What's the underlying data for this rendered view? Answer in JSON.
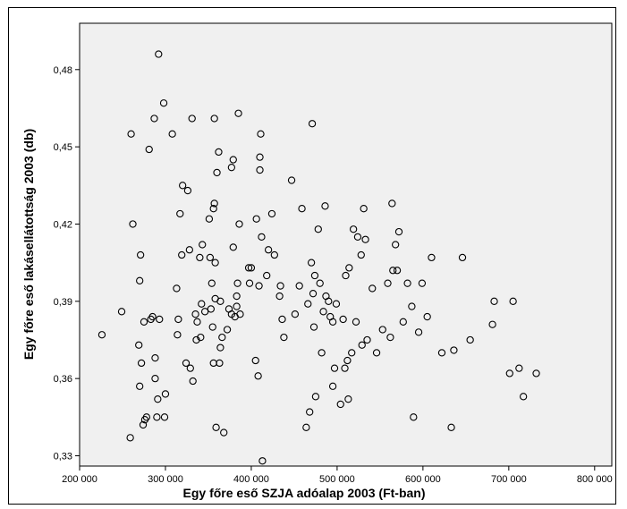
{
  "chart_data": {
    "type": "scatter",
    "title": "",
    "xlabel": "Egy főre eső SZJA adóalap 2003 (Ft-ban)",
    "ylabel": "Egy főre eső lakásellátottság 2003 (db)",
    "xlim": [
      200000,
      820000
    ],
    "ylim": [
      0.326,
      0.498
    ],
    "xticks": [
      200000,
      300000,
      400000,
      500000,
      600000,
      700000,
      800000
    ],
    "xtick_labels": [
      "200 000",
      "300 000",
      "400 000",
      "500 000",
      "600 000",
      "700 000",
      "800 000"
    ],
    "yticks": [
      0.33,
      0.36,
      0.39,
      0.42,
      0.45,
      0.48
    ],
    "ytick_labels": [
      "0,33",
      "0,36",
      "0,39",
      "0,42",
      "0,45",
      "0,48"
    ],
    "grid": false,
    "legend": "none",
    "marker": "open-circle",
    "colors": {
      "plot_background": "#f0f0f0",
      "marker": "#000000",
      "axes": "#000000"
    },
    "points": [
      [
        226000,
        0.377
      ],
      [
        249000,
        0.386
      ],
      [
        259000,
        0.337
      ],
      [
        260000,
        0.455
      ],
      [
        262000,
        0.42
      ],
      [
        269000,
        0.373
      ],
      [
        270000,
        0.398
      ],
      [
        270000,
        0.357
      ],
      [
        271000,
        0.408
      ],
      [
        272000,
        0.366
      ],
      [
        274000,
        0.342
      ],
      [
        275000,
        0.382
      ],
      [
        276000,
        0.344
      ],
      [
        278000,
        0.345
      ],
      [
        281000,
        0.449
      ],
      [
        283000,
        0.383
      ],
      [
        285000,
        0.384
      ],
      [
        287000,
        0.461
      ],
      [
        288000,
        0.368
      ],
      [
        288000,
        0.36
      ],
      [
        290000,
        0.345
      ],
      [
        291000,
        0.352
      ],
      [
        292000,
        0.486
      ],
      [
        293000,
        0.383
      ],
      [
        298000,
        0.467
      ],
      [
        299000,
        0.345
      ],
      [
        300000,
        0.354
      ],
      [
        308000,
        0.455
      ],
      [
        313000,
        0.395
      ],
      [
        314000,
        0.377
      ],
      [
        315000,
        0.383
      ],
      [
        317000,
        0.424
      ],
      [
        319000,
        0.408
      ],
      [
        320000,
        0.435
      ],
      [
        324000,
        0.366
      ],
      [
        326000,
        0.433
      ],
      [
        328000,
        0.41
      ],
      [
        329000,
        0.364
      ],
      [
        331000,
        0.461
      ],
      [
        332000,
        0.359
      ],
      [
        335000,
        0.385
      ],
      [
        336000,
        0.375
      ],
      [
        337000,
        0.382
      ],
      [
        340000,
        0.407
      ],
      [
        341000,
        0.376
      ],
      [
        342000,
        0.389
      ],
      [
        343000,
        0.412
      ],
      [
        346000,
        0.386
      ],
      [
        351000,
        0.422
      ],
      [
        352000,
        0.407
      ],
      [
        353000,
        0.387
      ],
      [
        354000,
        0.397
      ],
      [
        355000,
        0.38
      ],
      [
        356000,
        0.366
      ],
      [
        356000,
        0.426
      ],
      [
        357000,
        0.461
      ],
      [
        357000,
        0.428
      ],
      [
        358000,
        0.391
      ],
      [
        358000,
        0.405
      ],
      [
        359000,
        0.341
      ],
      [
        360000,
        0.44
      ],
      [
        362000,
        0.448
      ],
      [
        363000,
        0.366
      ],
      [
        364000,
        0.372
      ],
      [
        364000,
        0.39
      ],
      [
        366000,
        0.376
      ],
      [
        368000,
        0.339
      ],
      [
        372000,
        0.379
      ],
      [
        374000,
        0.387
      ],
      [
        377000,
        0.385
      ],
      [
        377000,
        0.442
      ],
      [
        379000,
        0.411
      ],
      [
        379000,
        0.445
      ],
      [
        381000,
        0.384
      ],
      [
        383000,
        0.392
      ],
      [
        383000,
        0.388
      ],
      [
        384000,
        0.397
      ],
      [
        385000,
        0.463
      ],
      [
        386000,
        0.42
      ],
      [
        387000,
        0.385
      ],
      [
        397000,
        0.403
      ],
      [
        398000,
        0.397
      ],
      [
        400000,
        0.403
      ],
      [
        405000,
        0.367
      ],
      [
        406000,
        0.422
      ],
      [
        408000,
        0.361
      ],
      [
        409000,
        0.396
      ],
      [
        410000,
        0.446
      ],
      [
        410000,
        0.441
      ],
      [
        411000,
        0.455
      ],
      [
        412000,
        0.415
      ],
      [
        413000,
        0.328
      ],
      [
        418000,
        0.4
      ],
      [
        420000,
        0.41
      ],
      [
        424000,
        0.424
      ],
      [
        427000,
        0.408
      ],
      [
        433000,
        0.392
      ],
      [
        434000,
        0.396
      ],
      [
        436000,
        0.383
      ],
      [
        438000,
        0.376
      ],
      [
        447000,
        0.437
      ],
      [
        451000,
        0.385
      ],
      [
        456000,
        0.396
      ],
      [
        459000,
        0.426
      ],
      [
        464000,
        0.341
      ],
      [
        466000,
        0.389
      ],
      [
        468000,
        0.347
      ],
      [
        470000,
        0.405
      ],
      [
        471000,
        0.459
      ],
      [
        472000,
        0.393
      ],
      [
        473000,
        0.38
      ],
      [
        474000,
        0.4
      ],
      [
        475000,
        0.353
      ],
      [
        478000,
        0.418
      ],
      [
        480000,
        0.397
      ],
      [
        482000,
        0.37
      ],
      [
        484000,
        0.386
      ],
      [
        486000,
        0.427
      ],
      [
        487000,
        0.392
      ],
      [
        490000,
        0.39
      ],
      [
        492000,
        0.384
      ],
      [
        495000,
        0.382
      ],
      [
        495000,
        0.357
      ],
      [
        497000,
        0.364
      ],
      [
        499000,
        0.389
      ],
      [
        504000,
        0.35
      ],
      [
        507000,
        0.383
      ],
      [
        509000,
        0.364
      ],
      [
        510000,
        0.4
      ],
      [
        512000,
        0.367
      ],
      [
        513000,
        0.352
      ],
      [
        514000,
        0.403
      ],
      [
        517000,
        0.37
      ],
      [
        519000,
        0.418
      ],
      [
        522000,
        0.382
      ],
      [
        524000,
        0.415
      ],
      [
        528000,
        0.408
      ],
      [
        529000,
        0.373
      ],
      [
        531000,
        0.426
      ],
      [
        533000,
        0.414
      ],
      [
        535000,
        0.375
      ],
      [
        541000,
        0.395
      ],
      [
        546000,
        0.37
      ],
      [
        553000,
        0.379
      ],
      [
        559000,
        0.397
      ],
      [
        562000,
        0.376
      ],
      [
        564000,
        0.428
      ],
      [
        565000,
        0.402
      ],
      [
        568000,
        0.412
      ],
      [
        570000,
        0.402
      ],
      [
        572000,
        0.417
      ],
      [
        577000,
        0.382
      ],
      [
        582000,
        0.397
      ],
      [
        587000,
        0.388
      ],
      [
        589000,
        0.345
      ],
      [
        595000,
        0.378
      ],
      [
        599000,
        0.397
      ],
      [
        605000,
        0.384
      ],
      [
        610000,
        0.407
      ],
      [
        622000,
        0.37
      ],
      [
        633000,
        0.341
      ],
      [
        636000,
        0.371
      ],
      [
        646000,
        0.407
      ],
      [
        655000,
        0.375
      ],
      [
        681000,
        0.381
      ],
      [
        683000,
        0.39
      ],
      [
        701000,
        0.362
      ],
      [
        705000,
        0.39
      ],
      [
        712000,
        0.364
      ],
      [
        717000,
        0.353
      ],
      [
        732000,
        0.362
      ]
    ]
  }
}
